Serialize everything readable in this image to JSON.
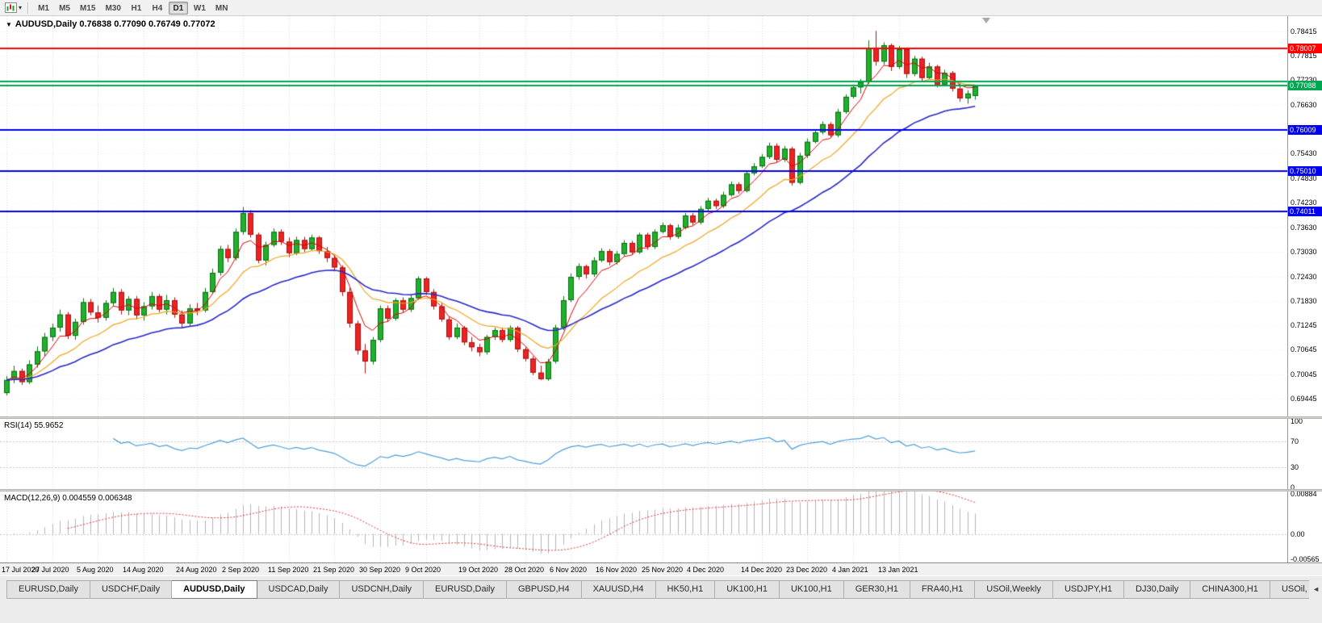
{
  "toolbar": {
    "timeframes": [
      "M1",
      "M5",
      "M15",
      "M30",
      "H1",
      "H4",
      "D1",
      "W1",
      "MN"
    ],
    "active_timeframe": "D1"
  },
  "chart": {
    "title": "AUDUSD,Daily  0.76838 0.77090 0.76749 0.77072"
  },
  "chart_data": {
    "type": "candlestick",
    "symbol": "AUDUSD",
    "timeframe": "Daily",
    "x_tick_labels": [
      "17 Jul 2020",
      "27 Jul 2020",
      "5 Aug 2020",
      "14 Aug 2020",
      "24 Aug 2020",
      "2 Sep 2020",
      "11 Sep 2020",
      "21 Sep 2020",
      "30 Sep 2020",
      "9 Oct 2020",
      "19 Oct 2020",
      "28 Oct 2020",
      "6 Nov 2020",
      "16 Nov 2020",
      "25 Nov 2020",
      "4 Dec 2020",
      "14 Dec 2020",
      "23 Dec 2020",
      "4 Jan 2021",
      "13 Jan 2021"
    ],
    "x_tick_bar_indices": [
      0,
      6,
      12,
      18,
      25,
      31,
      37,
      43,
      49,
      55,
      62,
      68,
      74,
      80,
      86,
      92,
      99,
      105,
      111,
      117
    ],
    "price_axis": {
      "min": 0.6901,
      "max": 0.7879,
      "labels": [
        "0.78415",
        "0.77815",
        "0.77230",
        "0.76630",
        "0.76030",
        "0.75430",
        "0.74830",
        "0.74230",
        "0.73630",
        "0.73030",
        "0.72430",
        "0.71830",
        "0.71245",
        "0.70645",
        "0.70045",
        "0.69445"
      ]
    },
    "horizontal_lines": [
      {
        "value": 0.78007,
        "color": "#ff0000",
        "label": "0.78007"
      },
      {
        "value": 0.772,
        "color": "#00a651",
        "label": ""
      },
      {
        "value": 0.77088,
        "color": "#00a651",
        "label": "0.77088"
      },
      {
        "value": 0.76009,
        "color": "#0000ee",
        "label": "0.76009"
      },
      {
        "value": 0.7501,
        "color": "#0000ee",
        "label": "0.75010"
      },
      {
        "value": 0.74011,
        "color": "#0000ee",
        "label": "0.74011"
      }
    ],
    "moving_averages": [
      {
        "period": 5,
        "color": "#e00000",
        "width": 1
      },
      {
        "period": 13,
        "color": "#efa520",
        "width": 1.2
      },
      {
        "period": 28,
        "color": "#2727c8",
        "width": 1.6
      }
    ],
    "colors": {
      "up": "#20b02c",
      "up_stroke": "#0c6e14",
      "down": "#ee2222",
      "down_stroke": "#a81414"
    },
    "candles": [
      [
        0.6958,
        0.7,
        0.6952,
        0.699
      ],
      [
        0.699,
        0.7025,
        0.6982,
        0.7012
      ],
      [
        0.7012,
        0.7018,
        0.6978,
        0.6985
      ],
      [
        0.6985,
        0.7038,
        0.698,
        0.7028
      ],
      [
        0.7028,
        0.7072,
        0.702,
        0.706
      ],
      [
        0.706,
        0.7105,
        0.7048,
        0.7095
      ],
      [
        0.7095,
        0.7128,
        0.7085,
        0.7118
      ],
      [
        0.7118,
        0.7162,
        0.7108,
        0.715
      ],
      [
        0.715,
        0.7156,
        0.709,
        0.7098
      ],
      [
        0.7098,
        0.714,
        0.7088,
        0.7132
      ],
      [
        0.7132,
        0.719,
        0.7125,
        0.718
      ],
      [
        0.718,
        0.7188,
        0.7148,
        0.7155
      ],
      [
        0.7155,
        0.7172,
        0.713,
        0.7142
      ],
      [
        0.7142,
        0.7185,
        0.7135,
        0.7178
      ],
      [
        0.7178,
        0.7215,
        0.717,
        0.7205
      ],
      [
        0.7205,
        0.7212,
        0.715,
        0.716
      ],
      [
        0.716,
        0.7195,
        0.7148,
        0.7188
      ],
      [
        0.7188,
        0.7195,
        0.7138,
        0.7148
      ],
      [
        0.7148,
        0.718,
        0.7135,
        0.717
      ],
      [
        0.717,
        0.7205,
        0.7162,
        0.7195
      ],
      [
        0.7195,
        0.72,
        0.7155,
        0.7162
      ],
      [
        0.7162,
        0.7198,
        0.715,
        0.7185
      ],
      [
        0.7185,
        0.7192,
        0.7142,
        0.715
      ],
      [
        0.715,
        0.716,
        0.7118,
        0.7128
      ],
      [
        0.7128,
        0.7175,
        0.712,
        0.7165
      ],
      [
        0.7165,
        0.7178,
        0.7148,
        0.716
      ],
      [
        0.716,
        0.7215,
        0.7155,
        0.7205
      ],
      [
        0.7205,
        0.7262,
        0.72,
        0.7252
      ],
      [
        0.7252,
        0.7318,
        0.7245,
        0.731
      ],
      [
        0.731,
        0.732,
        0.7278,
        0.7288
      ],
      [
        0.7288,
        0.736,
        0.7282,
        0.7352
      ],
      [
        0.7352,
        0.7413,
        0.7345,
        0.7398
      ],
      [
        0.7398,
        0.7405,
        0.7338,
        0.7345
      ],
      [
        0.7345,
        0.735,
        0.7275,
        0.7282
      ],
      [
        0.7282,
        0.7328,
        0.727,
        0.732
      ],
      [
        0.732,
        0.736,
        0.7315,
        0.7352
      ],
      [
        0.7352,
        0.7358,
        0.732,
        0.7328
      ],
      [
        0.7328,
        0.7338,
        0.729,
        0.73
      ],
      [
        0.73,
        0.734,
        0.7295,
        0.7332
      ],
      [
        0.7332,
        0.734,
        0.7302,
        0.731
      ],
      [
        0.731,
        0.7345,
        0.7305,
        0.7338
      ],
      [
        0.7338,
        0.7342,
        0.7298,
        0.7305
      ],
      [
        0.7305,
        0.7315,
        0.7278,
        0.7288
      ],
      [
        0.7288,
        0.7295,
        0.7255,
        0.7265
      ],
      [
        0.7265,
        0.727,
        0.7195,
        0.7205
      ],
      [
        0.7205,
        0.7215,
        0.7118,
        0.7128
      ],
      [
        0.7128,
        0.7135,
        0.7052,
        0.7062
      ],
      [
        0.7062,
        0.7078,
        0.7006,
        0.7035
      ],
      [
        0.7035,
        0.7095,
        0.7028,
        0.7088
      ],
      [
        0.7088,
        0.7172,
        0.7082,
        0.7165
      ],
      [
        0.7165,
        0.7172,
        0.7132,
        0.714
      ],
      [
        0.714,
        0.719,
        0.7135,
        0.7185
      ],
      [
        0.7185,
        0.7192,
        0.7155,
        0.7162
      ],
      [
        0.7162,
        0.7198,
        0.7156,
        0.719
      ],
      [
        0.719,
        0.7243,
        0.7185,
        0.7238
      ],
      [
        0.7238,
        0.7242,
        0.7198,
        0.7205
      ],
      [
        0.7205,
        0.7212,
        0.7162,
        0.717
      ],
      [
        0.717,
        0.7178,
        0.7132,
        0.7138
      ],
      [
        0.7138,
        0.7145,
        0.7088,
        0.7095
      ],
      [
        0.7095,
        0.7128,
        0.709,
        0.7118
      ],
      [
        0.7118,
        0.7122,
        0.7075,
        0.7082
      ],
      [
        0.7082,
        0.7095,
        0.706,
        0.707
      ],
      [
        0.707,
        0.7078,
        0.7048,
        0.7058
      ],
      [
        0.7058,
        0.71,
        0.7052,
        0.7095
      ],
      [
        0.7095,
        0.7118,
        0.7088,
        0.7112
      ],
      [
        0.7112,
        0.7118,
        0.7082,
        0.7088
      ],
      [
        0.7088,
        0.7123,
        0.7083,
        0.7118
      ],
      [
        0.7118,
        0.7122,
        0.7058,
        0.7065
      ],
      [
        0.7065,
        0.707,
        0.7035,
        0.7042
      ],
      [
        0.7042,
        0.7048,
        0.7002,
        0.7008
      ],
      [
        0.7008,
        0.7025,
        0.699,
        0.6992
      ],
      [
        0.6992,
        0.7042,
        0.6988,
        0.7035
      ],
      [
        0.7035,
        0.7125,
        0.703,
        0.7118
      ],
      [
        0.7118,
        0.7195,
        0.7112,
        0.7185
      ],
      [
        0.7185,
        0.725,
        0.718,
        0.7242
      ],
      [
        0.7242,
        0.7275,
        0.7235,
        0.7268
      ],
      [
        0.7268,
        0.7272,
        0.7238,
        0.7248
      ],
      [
        0.7248,
        0.729,
        0.7242,
        0.7282
      ],
      [
        0.7282,
        0.7312,
        0.7278,
        0.7305
      ],
      [
        0.7305,
        0.731,
        0.727,
        0.7278
      ],
      [
        0.7278,
        0.7305,
        0.7272,
        0.7298
      ],
      [
        0.7298,
        0.7332,
        0.7292,
        0.7325
      ],
      [
        0.7325,
        0.733,
        0.7295,
        0.7302
      ],
      [
        0.7302,
        0.735,
        0.7298,
        0.7345
      ],
      [
        0.7345,
        0.735,
        0.7308,
        0.7315
      ],
      [
        0.7315,
        0.7358,
        0.731,
        0.7352
      ],
      [
        0.7352,
        0.7375,
        0.7348,
        0.7368
      ],
      [
        0.7368,
        0.7372,
        0.7333,
        0.734
      ],
      [
        0.734,
        0.737,
        0.7335,
        0.7362
      ],
      [
        0.7362,
        0.7398,
        0.7358,
        0.7392
      ],
      [
        0.7392,
        0.7398,
        0.7368,
        0.7375
      ],
      [
        0.7375,
        0.7415,
        0.737,
        0.7408
      ],
      [
        0.7408,
        0.7435,
        0.7402,
        0.7428
      ],
      [
        0.7428,
        0.7433,
        0.7408,
        0.7415
      ],
      [
        0.7415,
        0.745,
        0.741,
        0.7442
      ],
      [
        0.7442,
        0.7475,
        0.7438,
        0.7468
      ],
      [
        0.7468,
        0.7473,
        0.7445,
        0.7452
      ],
      [
        0.7452,
        0.7502,
        0.7448,
        0.7495
      ],
      [
        0.7495,
        0.752,
        0.749,
        0.7512
      ],
      [
        0.7512,
        0.7542,
        0.7508,
        0.7535
      ],
      [
        0.7535,
        0.757,
        0.753,
        0.7562
      ],
      [
        0.7562,
        0.7568,
        0.7522,
        0.7528
      ],
      [
        0.7528,
        0.7562,
        0.7523,
        0.7555
      ],
      [
        0.7555,
        0.756,
        0.7465,
        0.7472
      ],
      [
        0.7472,
        0.7545,
        0.7468,
        0.7538
      ],
      [
        0.7538,
        0.758,
        0.7532,
        0.7572
      ],
      [
        0.7572,
        0.7602,
        0.7568,
        0.7595
      ],
      [
        0.7595,
        0.7622,
        0.759,
        0.7615
      ],
      [
        0.7615,
        0.762,
        0.7582,
        0.7588
      ],
      [
        0.7588,
        0.7652,
        0.7583,
        0.7645
      ],
      [
        0.7645,
        0.7688,
        0.764,
        0.7682
      ],
      [
        0.7682,
        0.7712,
        0.7678,
        0.7705
      ],
      [
        0.7705,
        0.7725,
        0.769,
        0.7718
      ],
      [
        0.7718,
        0.782,
        0.7713,
        0.78
      ],
      [
        0.78,
        0.7843,
        0.7758,
        0.7768
      ],
      [
        0.7768,
        0.7815,
        0.776,
        0.7808
      ],
      [
        0.7808,
        0.7812,
        0.7745,
        0.7755
      ],
      [
        0.7755,
        0.7806,
        0.775,
        0.7798
      ],
      [
        0.7798,
        0.7802,
        0.7728,
        0.7738
      ],
      [
        0.7738,
        0.7782,
        0.7732,
        0.7775
      ],
      [
        0.7775,
        0.778,
        0.772,
        0.7728
      ],
      [
        0.7728,
        0.7765,
        0.7723,
        0.7756
      ],
      [
        0.7756,
        0.776,
        0.7705,
        0.7712
      ],
      [
        0.7712,
        0.7748,
        0.7708,
        0.774
      ],
      [
        0.774,
        0.7745,
        0.7695,
        0.7702
      ],
      [
        0.7702,
        0.7715,
        0.767,
        0.7678
      ],
      [
        0.7678,
        0.7698,
        0.7665,
        0.769
      ],
      [
        0.76838,
        0.7709,
        0.76749,
        0.77072
      ]
    ],
    "rsi": {
      "label": "RSI(14)",
      "value": "55.9652",
      "period": 14,
      "axis_labels": [
        "100",
        "70",
        "30",
        "0"
      ],
      "levels": [
        70,
        30
      ],
      "color": "#4f9fd8"
    },
    "macd": {
      "label": "MACD(12,26,9)",
      "value": "0.004559 0.006348",
      "fast": 12,
      "slow": 26,
      "signal": 9,
      "axis_labels": [
        "0.00884",
        "0.00",
        "-0.00565"
      ],
      "max": 0.0094,
      "min": -0.0063,
      "histogram_color": "#b6b6b6",
      "signal_color": "#e03535"
    }
  },
  "tabs": {
    "items": [
      "EURUSD,Daily",
      "USDCHF,Daily",
      "AUDUSD,Daily",
      "USDCAD,Daily",
      "USDCNH,Daily",
      "EURUSD,Daily",
      "GBPUSD,H4",
      "XAUUSD,H4",
      "HK50,H1",
      "UK100,H1",
      "UK100,H1",
      "GER30,H1",
      "FRA40,H1",
      "USOil,Weekly",
      "USDJPY,H1",
      "DJ30,Daily",
      "CHINA300,H1",
      "USOil,"
    ],
    "active_index": 2,
    "scroll_left_icon": "◄"
  }
}
